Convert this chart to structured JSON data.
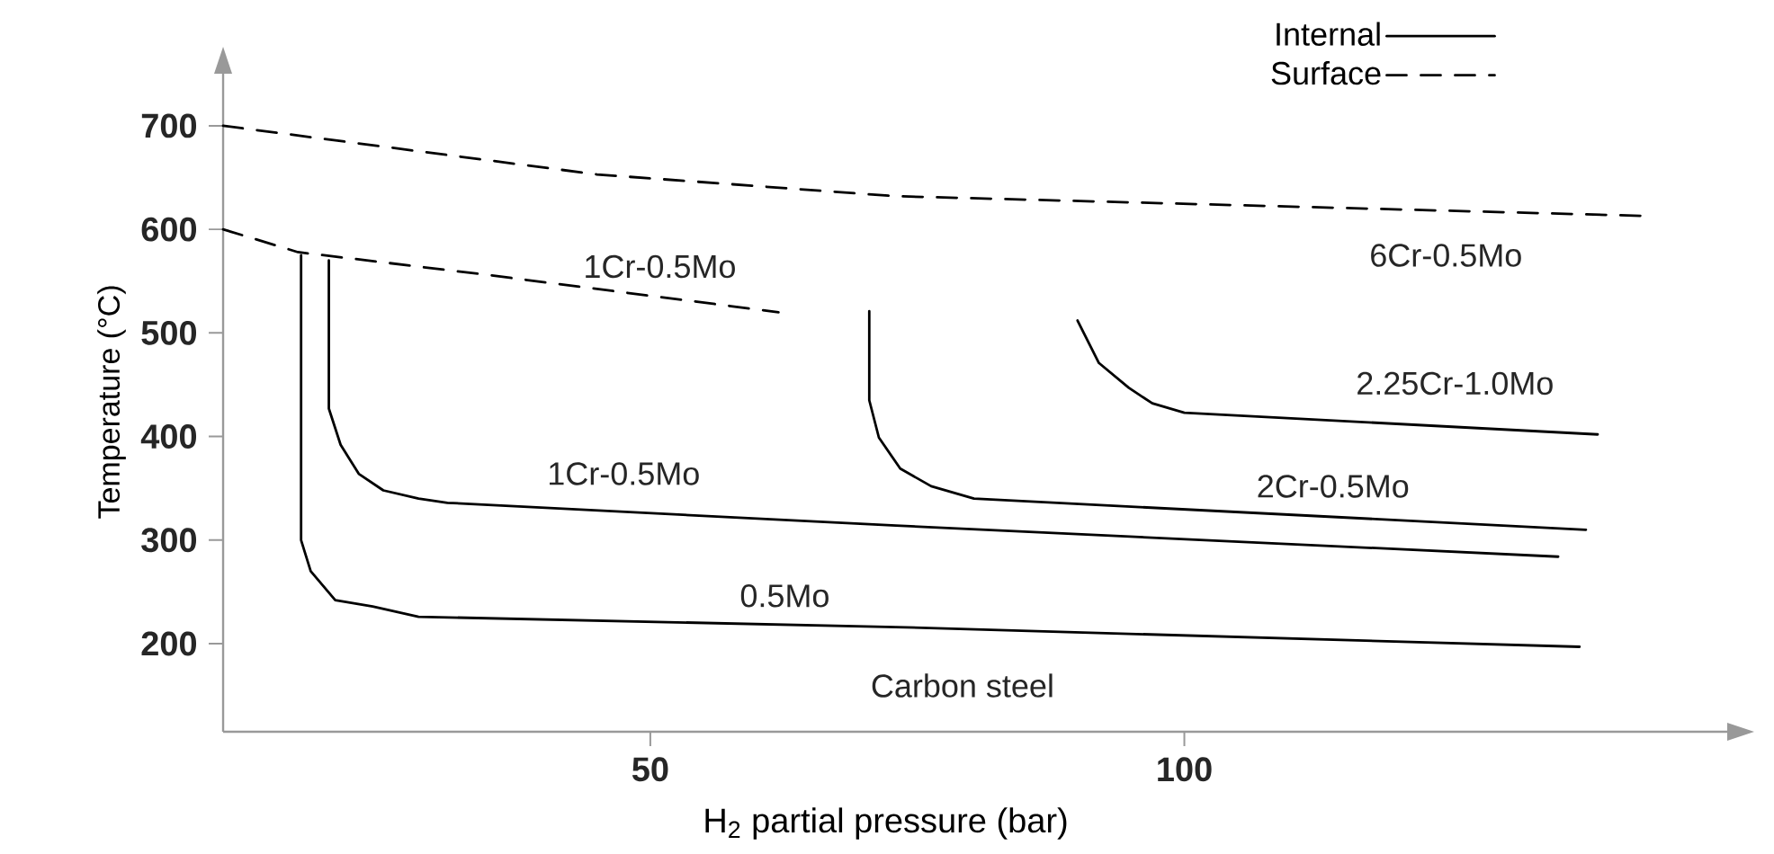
{
  "chart_data": {
    "type": "line",
    "xlabel": "H$_{2}$ partial pressure (bar)",
    "ylabel": "Temperature (°C)",
    "xlim": [
      10,
      151
    ],
    "ylim": [
      115,
      752
    ],
    "xticks": [
      50,
      100
    ],
    "yticks": [
      200,
      300,
      400,
      500,
      600,
      700
    ],
    "grid": false,
    "legend": "top right",
    "marker": "none",
    "series": [
      {
        "name": "Internal",
        "color": "#000000",
        "line_style": "solid",
        "x": [
          17.3,
          17.3,
          18.2,
          20.5,
          24,
          28.3,
          73,
          137
        ],
        "values": [
          575,
          300,
          270,
          242,
          236,
          226,
          216,
          197
        ]
      },
      {
        "name": "Surface",
        "color": "#000000",
        "line_style": "dashed",
        "x": [
          10,
          45,
          73,
          143
        ],
        "values": [
          700,
          653,
          632,
          613
        ]
      },
      {
        "color": "#000000",
        "line_style": "dashed",
        "x": [
          10,
          17,
          34,
          62
        ],
        "values": [
          600,
          578,
          557,
          520
        ]
      },
      {
        "color": "#000000",
        "line_style": "solid",
        "x": [
          19.9,
          19.9,
          21,
          22.7,
          25,
          28.3,
          31,
          73,
          135
        ],
        "values": [
          570,
          427,
          392,
          364,
          348,
          340,
          336,
          314,
          284
        ]
      },
      {
        "color": "#000000",
        "line_style": "solid",
        "x": [
          70.5,
          70.5,
          71.4,
          73.4,
          76.3,
          80.3,
          137.6
        ],
        "values": [
          521,
          435,
          399,
          369,
          352,
          340,
          310
        ]
      },
      {
        "color": "#000000",
        "line_style": "solid",
        "x": [
          90,
          92,
          94.8,
          97,
          100,
          138.7
        ],
        "values": [
          512,
          471,
          447,
          432,
          423,
          402
        ]
      }
    ],
    "annotations": [
      "1Cr-0.5Mo",
      "6Cr-0.5Mo",
      "2.25Cr-1.0Mo",
      "1Cr-0.5Mo",
      "2Cr-0.5Mo",
      "0.5Mo",
      "Carbon steel"
    ]
  }
}
